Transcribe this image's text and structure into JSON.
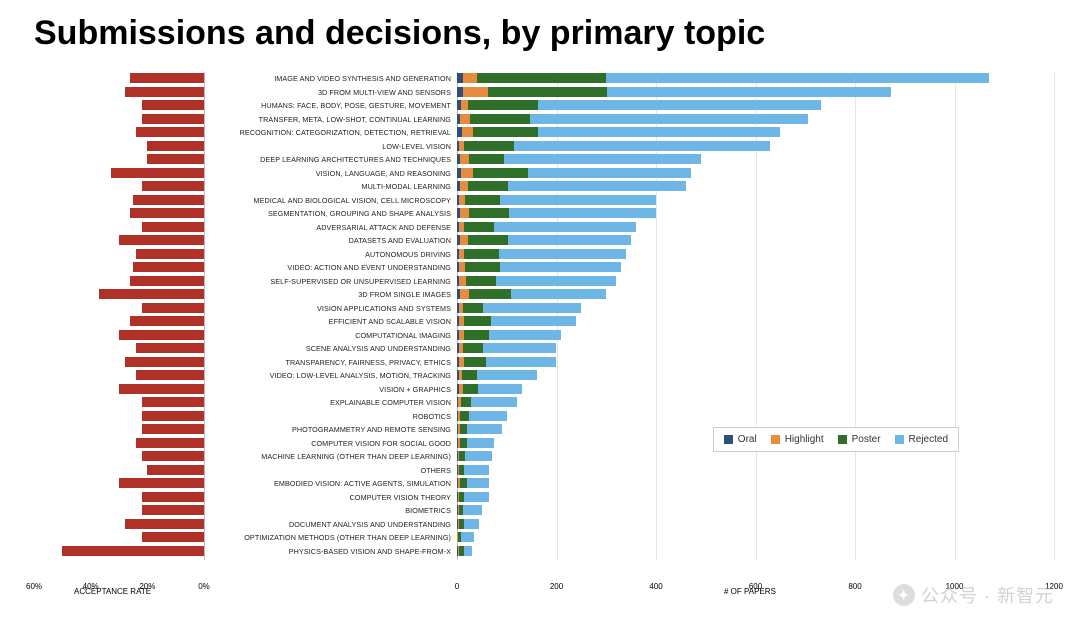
{
  "title": "Submissions and decisions, by primary topic",
  "colors": {
    "acceptance_bar": "#b03127",
    "oral": "#2f4e7a",
    "highlight": "#e78b3e",
    "poster": "#2f6f2a",
    "rejected": "#6eb6e6",
    "grid": "#e6e6e6",
    "axis_text": "#000000",
    "background": "#ffffff"
  },
  "left_chart": {
    "axis_title": "ACCEPTANCE RATE",
    "max_pct": 60,
    "ticks": [
      0,
      20,
      40,
      60
    ],
    "tick_labels": [
      "0%",
      "20%",
      "40%",
      "60%"
    ]
  },
  "right_chart": {
    "axis_title": "# OF PAPERS",
    "max": 1200,
    "ticks": [
      0,
      200,
      400,
      600,
      800,
      1000,
      1200
    ]
  },
  "legend": [
    {
      "label": "Oral",
      "color_key": "oral"
    },
    {
      "label": "Highlight",
      "color_key": "highlight"
    },
    {
      "label": "Poster",
      "color_key": "poster"
    },
    {
      "label": "Rejected",
      "color_key": "rejected"
    }
  ],
  "rows": [
    {
      "label": "IMAGE AND VIDEO SYNTHESIS AND GENERATION",
      "acceptance_pct": 26,
      "oral": 12,
      "highlight": 28,
      "poster": 260,
      "rejected": 770
    },
    {
      "label": "3D FROM MULTI-VIEW AND SENSORS",
      "acceptance_pct": 28,
      "oral": 12,
      "highlight": 50,
      "poster": 240,
      "rejected": 570
    },
    {
      "label": "HUMANS: FACE, BODY, POSE, GESTURE, MOVEMENT",
      "acceptance_pct": 22,
      "oral": 8,
      "highlight": 14,
      "poster": 140,
      "rejected": 570
    },
    {
      "label": "TRANSFER, META, LOW-SHOT, CONTINUAL LEARNING",
      "acceptance_pct": 22,
      "oral": 6,
      "highlight": 20,
      "poster": 120,
      "rejected": 560
    },
    {
      "label": "RECOGNITION: CATEGORIZATION, DETECTION, RETRIEVAL",
      "acceptance_pct": 24,
      "oral": 10,
      "highlight": 22,
      "poster": 130,
      "rejected": 488
    },
    {
      "label": "LOW-LEVEL VISION",
      "acceptance_pct": 20,
      "oral": 4,
      "highlight": 10,
      "poster": 100,
      "rejected": 516
    },
    {
      "label": "DEEP LEARNING ARCHITECTURES AND TECHNIQUES",
      "acceptance_pct": 20,
      "oral": 6,
      "highlight": 18,
      "poster": 70,
      "rejected": 396
    },
    {
      "label": "VISION, LANGUAGE, AND REASONING",
      "acceptance_pct": 33,
      "oral": 8,
      "highlight": 24,
      "poster": 110,
      "rejected": 328
    },
    {
      "label": "MULTI-MODAL LEARNING",
      "acceptance_pct": 22,
      "oral": 6,
      "highlight": 16,
      "poster": 80,
      "rejected": 358
    },
    {
      "label": "MEDICAL AND BIOLOGICAL VISION, CELL MICROSCOPY",
      "acceptance_pct": 25,
      "oral": 4,
      "highlight": 12,
      "poster": 70,
      "rejected": 314
    },
    {
      "label": "SEGMENTATION, GROUPING AND SHAPE ANALYSIS",
      "acceptance_pct": 26,
      "oral": 6,
      "highlight": 18,
      "poster": 80,
      "rejected": 296
    },
    {
      "label": "ADVERSARIAL ATTACK AND DEFENSE",
      "acceptance_pct": 22,
      "oral": 4,
      "highlight": 10,
      "poster": 60,
      "rejected": 286
    },
    {
      "label": "DATASETS AND EVALUATION",
      "acceptance_pct": 30,
      "oral": 6,
      "highlight": 16,
      "poster": 80,
      "rejected": 248
    },
    {
      "label": "AUTONOMOUS DRIVING",
      "acceptance_pct": 24,
      "oral": 4,
      "highlight": 10,
      "poster": 70,
      "rejected": 256
    },
    {
      "label": "VIDEO: ACTION AND EVENT UNDERSTANDING",
      "acceptance_pct": 25,
      "oral": 4,
      "highlight": 12,
      "poster": 70,
      "rejected": 244
    },
    {
      "label": "SELF-SUPERVISED OR UNSUPERVISED  LEARNING",
      "acceptance_pct": 26,
      "oral": 4,
      "highlight": 14,
      "poster": 60,
      "rejected": 242
    },
    {
      "label": "3D FROM SINGLE IMAGES",
      "acceptance_pct": 37,
      "oral": 6,
      "highlight": 18,
      "poster": 85,
      "rejected": 191
    },
    {
      "label": "VISION APPLICATIONS AND SYSTEMS",
      "acceptance_pct": 22,
      "oral": 4,
      "highlight": 8,
      "poster": 40,
      "rejected": 198
    },
    {
      "label": "EFFICIENT AND SCALABLE VISION",
      "acceptance_pct": 26,
      "oral": 4,
      "highlight": 10,
      "poster": 55,
      "rejected": 171
    },
    {
      "label": "COMPUTATIONAL IMAGING",
      "acceptance_pct": 30,
      "oral": 4,
      "highlight": 10,
      "poster": 50,
      "rejected": 146
    },
    {
      "label": "SCENE ANALYSIS AND UNDERSTANDING",
      "acceptance_pct": 24,
      "oral": 4,
      "highlight": 8,
      "poster": 40,
      "rejected": 148
    },
    {
      "label": "TRANSPARENCY, FAIRNESS, PRIVACY, ETHICS",
      "acceptance_pct": 28,
      "oral": 4,
      "highlight": 10,
      "poster": 45,
      "rejected": 141
    },
    {
      "label": "VIDEO: LOW-LEVEL ANALYSIS, MOTION,  TRACKING",
      "acceptance_pct": 24,
      "oral": 4,
      "highlight": 6,
      "poster": 30,
      "rejected": 120
    },
    {
      "label": "VISION + GRAPHICS",
      "acceptance_pct": 30,
      "oral": 4,
      "highlight": 8,
      "poster": 30,
      "rejected": 88
    },
    {
      "label": "EXPLAINABLE COMPUTER VISION",
      "acceptance_pct": 22,
      "oral": 3,
      "highlight": 5,
      "poster": 20,
      "rejected": 92
    },
    {
      "label": "ROBOTICS",
      "acceptance_pct": 22,
      "oral": 2,
      "highlight": 4,
      "poster": 18,
      "rejected": 76
    },
    {
      "label": "PHOTOGRAMMETRY AND REMOTE SENSING",
      "acceptance_pct": 22,
      "oral": 2,
      "highlight": 4,
      "poster": 15,
      "rejected": 69
    },
    {
      "label": "COMPUTER VISION FOR SOCIAL GOOD",
      "acceptance_pct": 24,
      "oral": 2,
      "highlight": 4,
      "poster": 14,
      "rejected": 55
    },
    {
      "label": "MACHINE LEARNING (OTHER THAN DEEP LEARNING)",
      "acceptance_pct": 22,
      "oral": 2,
      "highlight": 3,
      "poster": 12,
      "rejected": 53
    },
    {
      "label": "OTHERS",
      "acceptance_pct": 20,
      "oral": 2,
      "highlight": 3,
      "poster": 10,
      "rejected": 50
    },
    {
      "label": "EMBODIED VISION: ACTIVE AGENTS, SIMULATION",
      "acceptance_pct": 30,
      "oral": 2,
      "highlight": 4,
      "poster": 14,
      "rejected": 45
    },
    {
      "label": "COMPUTER VISION THEORY",
      "acceptance_pct": 22,
      "oral": 2,
      "highlight": 3,
      "poster": 10,
      "rejected": 50
    },
    {
      "label": "BIOMETRICS",
      "acceptance_pct": 22,
      "oral": 2,
      "highlight": 3,
      "poster": 8,
      "rejected": 37
    },
    {
      "label": "DOCUMENT ANALYSIS AND UNDERSTANDING",
      "acceptance_pct": 28,
      "oral": 2,
      "highlight": 3,
      "poster": 10,
      "rejected": 30
    },
    {
      "label": "OPTIMIZATION METHODS (OTHER THAN DEEP LEARNING)",
      "acceptance_pct": 22,
      "oral": 1,
      "highlight": 2,
      "poster": 6,
      "rejected": 26
    },
    {
      "label": "PHYSICS-BASED VISION AND SHAPE-FROM-X",
      "acceptance_pct": 50,
      "oral": 2,
      "highlight": 3,
      "poster": 10,
      "rejected": 15
    }
  ],
  "watermark": {
    "text": "公众号 · 新智元"
  }
}
